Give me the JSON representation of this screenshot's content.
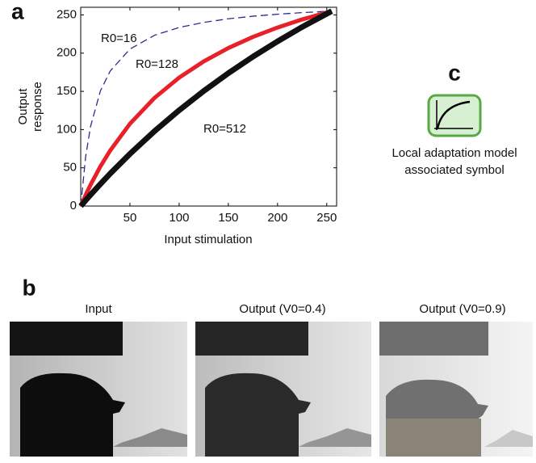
{
  "chart_data": {
    "type": "line",
    "panel_label": "a",
    "xlabel": "Input stimulation",
    "ylabel": [
      "Output",
      "response"
    ],
    "x": [
      0,
      5,
      10,
      20,
      30,
      50,
      75,
      100,
      125,
      150,
      175,
      200,
      225,
      255
    ],
    "series": [
      {
        "name": "R0=16",
        "color": "#2b2b8f",
        "dash": true,
        "width": 1.3,
        "values": [
          0,
          64.5,
          104.2,
          150.6,
          176.7,
          205.3,
          223.4,
          233.6,
          240.2,
          244.9,
          248.3,
          250.9,
          253.0,
          255
        ]
      },
      {
        "name": "R0=128",
        "color": "#e8202a",
        "dash": false,
        "width": 5,
        "values": [
          0,
          14.4,
          27.8,
          51.8,
          72.7,
          107.6,
          141.5,
          168.0,
          189.2,
          206.7,
          221.2,
          233.5,
          244.1,
          255
        ]
      },
      {
        "name": "R0=512",
        "color": "#111111",
        "dash": false,
        "width": 7,
        "values": [
          0,
          7.4,
          14.7,
          28.8,
          42.5,
          68.2,
          98.0,
          125.3,
          150.5,
          173.8,
          195.4,
          215.4,
          234.2,
          255
        ]
      }
    ],
    "xlim": [
      0,
      260
    ],
    "ylim": [
      0,
      260
    ],
    "xticks": [
      50,
      100,
      150,
      200,
      250
    ],
    "yticks": [
      0,
      50,
      100,
      150,
      200,
      250
    ]
  },
  "panel_c": {
    "label": "c",
    "caption": [
      "Local adaptation model",
      "associated symbol"
    ]
  },
  "panel_b": {
    "label": "b",
    "images": [
      {
        "title": "Input"
      },
      {
        "title": "Output (V0=0.4)"
      },
      {
        "title": "Output (V0=0.9)"
      }
    ]
  }
}
